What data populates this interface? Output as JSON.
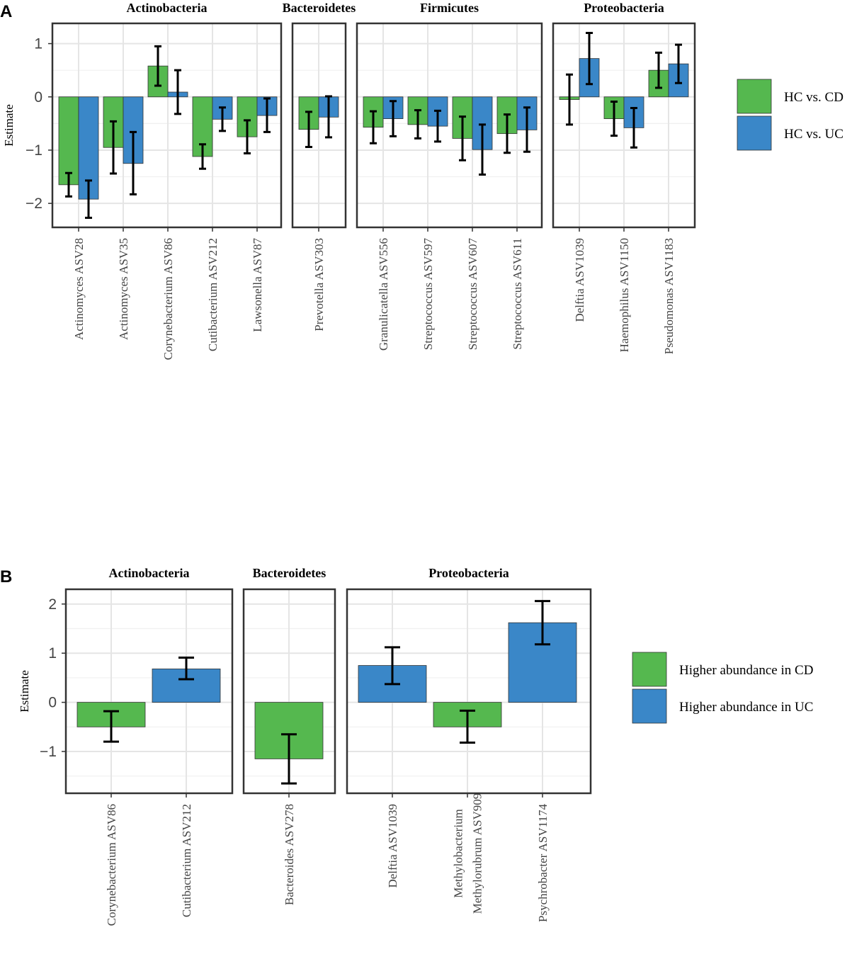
{
  "colors": {
    "green": "#55b84f",
    "blue": "#3a87c8"
  },
  "chart_data": [
    {
      "panel": "A",
      "type": "bar",
      "ylabel": "Estimate",
      "ylim": [
        -2.45,
        1.38
      ],
      "yticks": [
        1,
        0,
        -1,
        -2
      ],
      "ytick_labels": [
        "1",
        "0",
        "−1",
        "−2"
      ],
      "legend": {
        "placement": "right",
        "entries": [
          {
            "name": "HC vs. CD",
            "color": "#55b84f"
          },
          {
            "name": "HC vs. UC",
            "color": "#3a87c8"
          }
        ]
      },
      "series_names": [
        "HC vs. CD",
        "HC vs. UC"
      ],
      "facets": [
        {
          "title": "Actinobacteria",
          "categories": [
            {
              "label": [
                "Actinomyces ASV28"
              ],
              "values": [
                -1.65,
                -1.92
              ],
              "lower": [
                -1.87,
                -2.27
              ],
              "upper": [
                -1.43,
                -1.57
              ]
            },
            {
              "label": [
                "Actinomyces ASV35"
              ],
              "values": [
                -0.95,
                -1.25
              ],
              "lower": [
                -1.44,
                -1.83
              ],
              "upper": [
                -0.46,
                -0.66
              ]
            },
            {
              "label": [
                "Corynebacterium ASV86"
              ],
              "values": [
                0.58,
                0.09
              ],
              "lower": [
                0.21,
                -0.32
              ],
              "upper": [
                0.95,
                0.5
              ]
            },
            {
              "label": [
                "Cutibacterium ASV212"
              ],
              "values": [
                -1.12,
                -0.42
              ],
              "lower": [
                -1.35,
                -0.64
              ],
              "upper": [
                -0.89,
                -0.2
              ]
            },
            {
              "label": [
                "Lawsonella ASV87"
              ],
              "values": [
                -0.75,
                -0.35
              ],
              "lower": [
                -1.06,
                -0.66
              ],
              "upper": [
                -0.44,
                -0.03
              ]
            }
          ]
        },
        {
          "title": "Bacteroidetes",
          "categories": [
            {
              "label": [
                "Prevotella ASV303"
              ],
              "values": [
                -0.61,
                -0.38
              ],
              "lower": [
                -0.94,
                -0.76
              ],
              "upper": [
                -0.28,
                0.01
              ]
            }
          ]
        },
        {
          "title": "Firmicutes",
          "categories": [
            {
              "label": [
                "Granulicatella ASV556"
              ],
              "values": [
                -0.57,
                -0.41
              ],
              "lower": [
                -0.87,
                -0.74
              ],
              "upper": [
                -0.27,
                -0.08
              ]
            },
            {
              "label": [
                "Streptococcus ASV597"
              ],
              "values": [
                -0.52,
                -0.55
              ],
              "lower": [
                -0.78,
                -0.84
              ],
              "upper": [
                -0.25,
                -0.26
              ]
            },
            {
              "label": [
                "Streptococcus ASV607"
              ],
              "values": [
                -0.78,
                -0.99
              ],
              "lower": [
                -1.19,
                -1.46
              ],
              "upper": [
                -0.37,
                -0.52
              ]
            },
            {
              "label": [
                "Streptococcus ASV611"
              ],
              "values": [
                -0.69,
                -0.62
              ],
              "lower": [
                -1.05,
                -1.03
              ],
              "upper": [
                -0.33,
                -0.2
              ]
            }
          ]
        },
        {
          "title": "Proteobacteria",
          "categories": [
            {
              "label": [
                "Delftia ASV1039"
              ],
              "values": [
                -0.05,
                0.72
              ],
              "lower": [
                -0.52,
                0.24
              ],
              "upper": [
                0.42,
                1.2
              ]
            },
            {
              "label": [
                "Haemophilus ASV1150"
              ],
              "values": [
                -0.41,
                -0.58
              ],
              "lower": [
                -0.73,
                -0.95
              ],
              "upper": [
                -0.09,
                -0.21
              ]
            },
            {
              "label": [
                "Pseudomonas ASV1183"
              ],
              "values": [
                0.5,
                0.62
              ],
              "lower": [
                0.17,
                0.26
              ],
              "upper": [
                0.83,
                0.98
              ]
            }
          ]
        }
      ]
    },
    {
      "panel": "B",
      "type": "bar",
      "ylabel": "Estimate",
      "ylim": [
        -1.85,
        2.3
      ],
      "yticks": [
        2,
        1,
        0,
        -1
      ],
      "ytick_labels": [
        "2",
        "1",
        "0",
        "−1"
      ],
      "legend": {
        "placement": "right",
        "entries": [
          {
            "name": "Higher abundance in CD",
            "color": "#55b84f"
          },
          {
            "name": "Higher abundance in UC",
            "color": "#3a87c8"
          }
        ]
      },
      "facets": [
        {
          "title": "Actinobacteria",
          "categories": [
            {
              "label": [
                "Corynebacterium ASV86"
              ],
              "values": [
                -0.5
              ],
              "lower": [
                -0.8
              ],
              "upper": [
                -0.18
              ],
              "series": [
                "Higher abundance in CD"
              ]
            },
            {
              "label": [
                "Cutibacterium ASV212"
              ],
              "values": [
                0.68
              ],
              "lower": [
                0.47
              ],
              "upper": [
                0.91
              ],
              "series": [
                "Higher abundance in UC"
              ]
            }
          ]
        },
        {
          "title": "Bacteroidetes",
          "categories": [
            {
              "label": [
                "Bacteroides ASV278"
              ],
              "values": [
                -1.15
              ],
              "lower": [
                -1.65
              ],
              "upper": [
                -0.65
              ],
              "series": [
                "Higher abundance in CD"
              ]
            }
          ]
        },
        {
          "title": "Proteobacteria",
          "categories": [
            {
              "label": [
                "Delftia ASV1039"
              ],
              "values": [
                0.75
              ],
              "lower": [
                0.37
              ],
              "upper": [
                1.12
              ],
              "series": [
                "Higher abundance in UC"
              ]
            },
            {
              "label": [
                "Methylobacterium",
                "Methylorubrum ASV909"
              ],
              "values": [
                -0.5
              ],
              "lower": [
                -0.82
              ],
              "upper": [
                -0.17
              ],
              "series": [
                "Higher abundance in CD"
              ]
            },
            {
              "label": [
                "Psychrobacter ASV1174"
              ],
              "values": [
                1.62
              ],
              "lower": [
                1.18
              ],
              "upper": [
                2.06
              ],
              "series": [
                "Higher abundance in UC"
              ]
            }
          ]
        }
      ]
    }
  ]
}
